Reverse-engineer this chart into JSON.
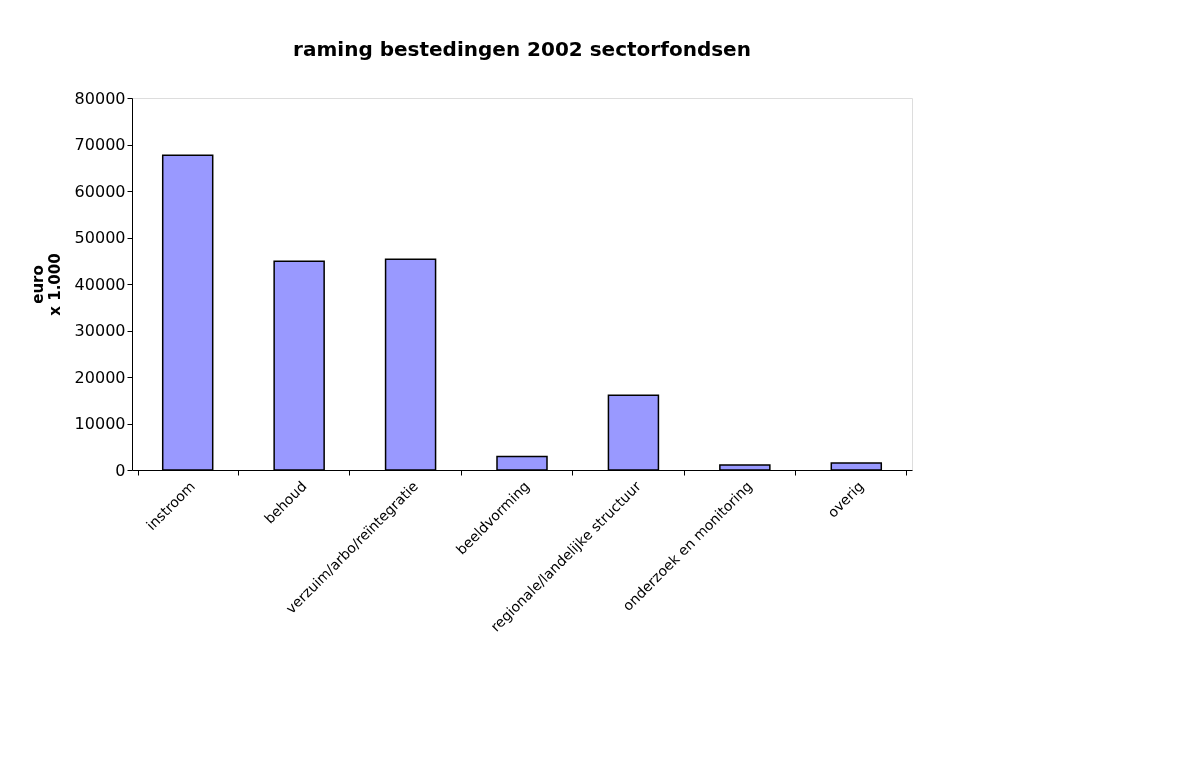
{
  "chart_data": {
    "type": "bar",
    "title": "raming bestedingen 2002 sectorfondsen",
    "ylabel": "euro\nx 1.000",
    "categories": [
      "instroom",
      "behoud",
      "verzuim/arbo/reïntegratie",
      "beeldvorming",
      "regionale/landelijke structuur",
      "onderzoek en monitoring",
      "overig"
    ],
    "values": [
      67700,
      44900,
      45300,
      2900,
      16100,
      1100,
      1500
    ],
    "color": "#9999ff",
    "ylim": [
      0,
      80000
    ],
    "yticks": [
      0,
      10000,
      20000,
      30000,
      40000,
      50000,
      60000,
      70000,
      80000
    ],
    "grid": false
  }
}
